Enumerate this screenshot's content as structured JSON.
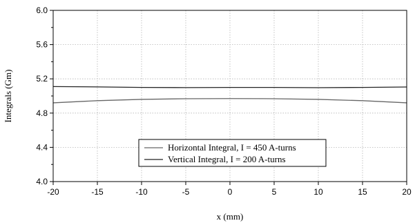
{
  "chart_data": {
    "type": "line",
    "title": "",
    "xlabel": "x (mm)",
    "ylabel": "Integrals (Gm)",
    "xlim": [
      -20,
      20
    ],
    "ylim": [
      4.0,
      6.0
    ],
    "x_ticks": [
      -20,
      -15,
      -10,
      -5,
      0,
      5,
      10,
      15,
      20
    ],
    "y_ticks": [
      4.0,
      4.4,
      4.8,
      5.2,
      5.6,
      6.0
    ],
    "y_tick_labels": [
      "4.0",
      "4.4",
      "4.8",
      "5.2",
      "5.6",
      "6.0"
    ],
    "y_minor_ticks": [
      4.2,
      4.6,
      5.0,
      5.4,
      5.8
    ],
    "grid": true,
    "legend": "bottom-center",
    "series": [
      {
        "name": "Horizontal Integral, I = 450 A-turns",
        "color": "#666666",
        "x": [
          -20,
          -15,
          -10,
          -5,
          0,
          5,
          10,
          15,
          20
        ],
        "y": [
          4.92,
          4.945,
          4.96,
          4.968,
          4.97,
          4.968,
          4.96,
          4.945,
          4.92
        ]
      },
      {
        "name": "Vertical Integral, I = 200 A-turns",
        "color": "#222222",
        "x": [
          -20,
          -15,
          -10,
          -5,
          0,
          5,
          10,
          15,
          20
        ],
        "y": [
          5.11,
          5.106,
          5.1,
          5.098,
          5.1,
          5.1,
          5.097,
          5.1,
          5.105
        ]
      }
    ]
  }
}
